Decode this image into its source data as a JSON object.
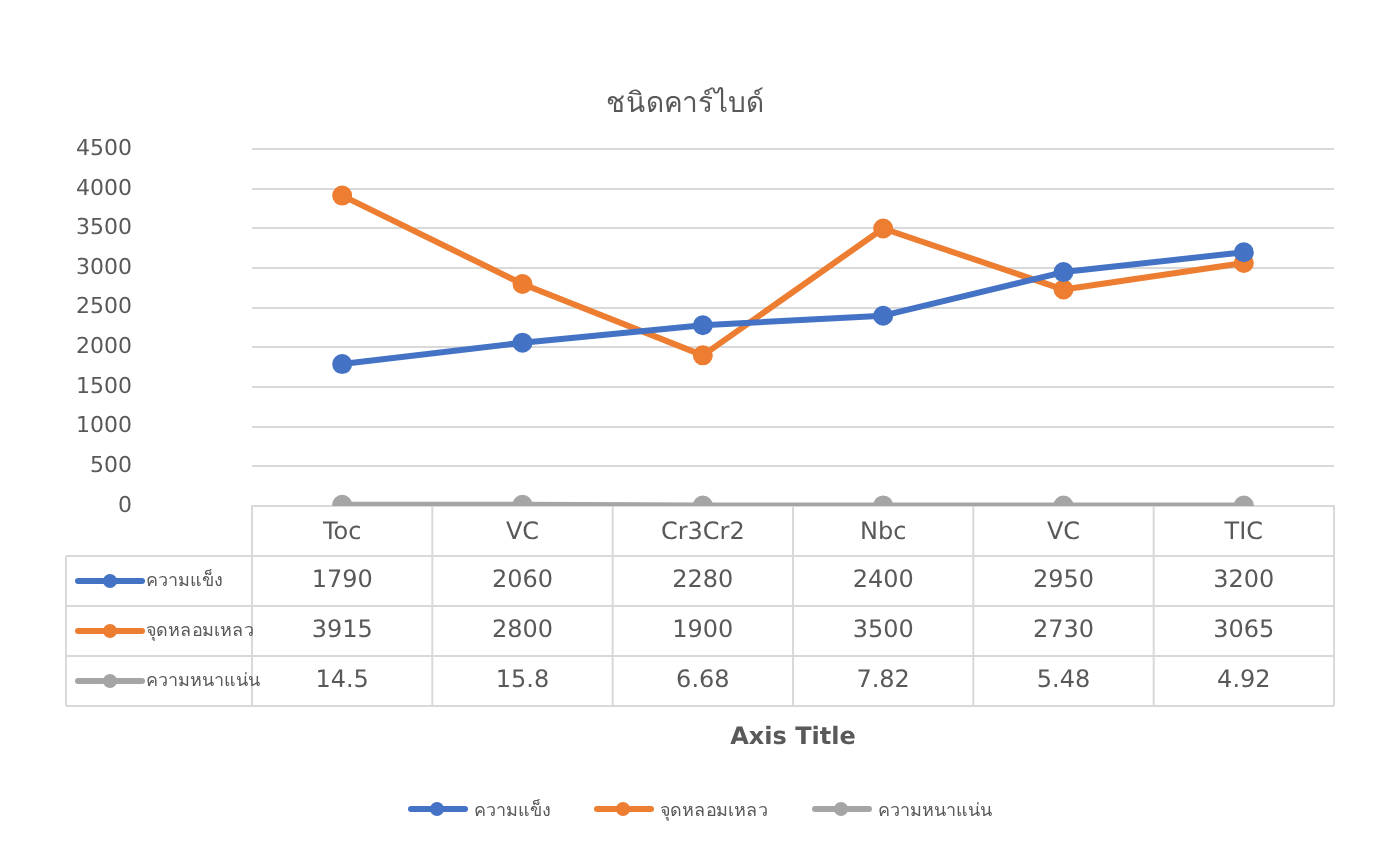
{
  "chart_data": {
    "type": "line",
    "title": "ชนิดคาร์ไบด์",
    "annotations": [
      "Axis Title"
    ],
    "categories": [
      "Toc",
      "VC",
      "Cr3Cr2",
      "Nbc",
      "VC",
      "TIC"
    ],
    "series": [
      {
        "name": "ความแข็ง",
        "color": "#4472c4",
        "values": [
          1790,
          2060,
          2280,
          2400,
          2950,
          3200
        ]
      },
      {
        "name": "จุดหลอมเหลว",
        "color": "#ed7d31",
        "values": [
          3915,
          2800,
          1900,
          3500,
          2730,
          3065
        ]
      },
      {
        "name": "ความหนาแน่น",
        "color": "#a5a5a5",
        "values": [
          14.5,
          15.8,
          6.68,
          7.82,
          5.48,
          4.92
        ]
      }
    ],
    "ylim": [
      0,
      4500
    ],
    "yticks": [
      0,
      500,
      1000,
      1500,
      2000,
      2500,
      3000,
      3500,
      4000,
      4500
    ],
    "grid": "y",
    "legend": "bottom",
    "marker": "circle",
    "line_style": "solid",
    "data_labels": true
  }
}
